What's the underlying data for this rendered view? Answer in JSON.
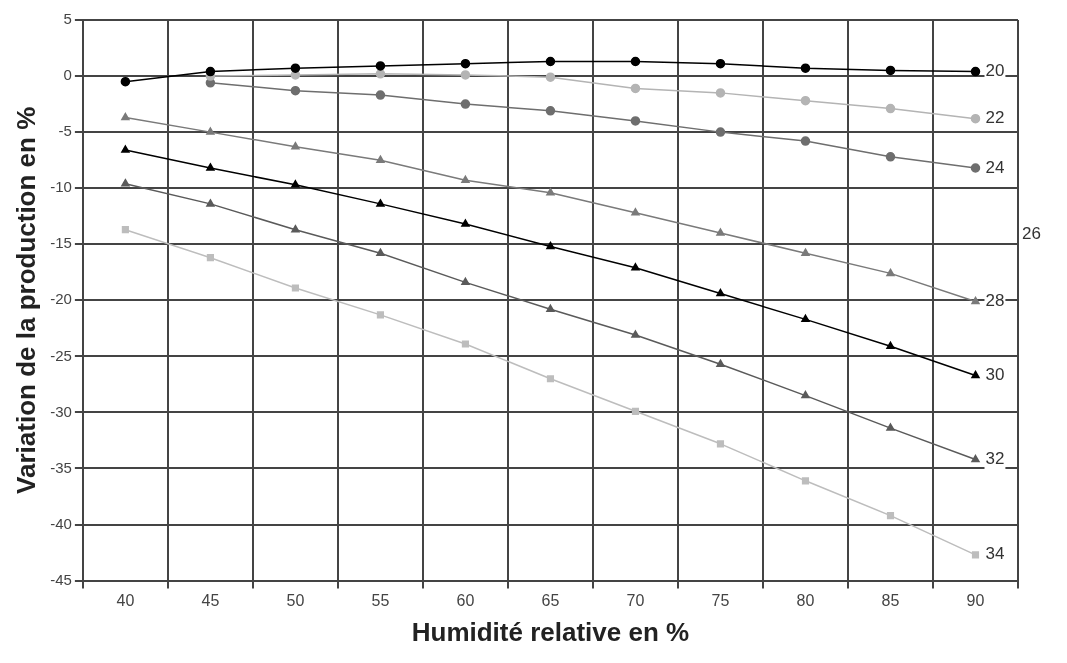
{
  "chart_data": {
    "type": "line",
    "xlabel": "Humidité relative en %",
    "ylabel": "Variation de la production en %",
    "categories": [
      "40",
      "45",
      "50",
      "55",
      "60",
      "65",
      "70",
      "75",
      "80",
      "85",
      "90"
    ],
    "ylim": [
      -45,
      5
    ],
    "yticks": [
      5,
      0,
      -5,
      -10,
      -15,
      -20,
      -25,
      -30,
      -35,
      -40,
      -45
    ],
    "grid": true,
    "legend": false,
    "series": [
      {
        "name": "20",
        "color": "#000000",
        "marker": "circle",
        "values": [
          -0.5,
          0.4,
          0.7,
          0.9,
          1.1,
          1.3,
          1.3,
          1.1,
          0.7,
          0.5,
          0.4
        ]
      },
      {
        "name": "22",
        "color": "#b4b4b4",
        "marker": "circle",
        "values": [
          null,
          0,
          0.1,
          0.2,
          0.1,
          -0.1,
          -1.1,
          -1.5,
          -2.2,
          -2.9,
          -3.8
        ]
      },
      {
        "name": "24",
        "color": "#6e6e6e",
        "marker": "circle",
        "values": [
          null,
          -0.6,
          -1.3,
          -1.7,
          -2.5,
          -3.1,
          -4.0,
          -5.0,
          -5.8,
          -7.2,
          -8.2
        ]
      },
      {
        "name": "28",
        "color": "#7a7a7a",
        "marker": "triangle",
        "values": [
          -3.7,
          -5.0,
          -6.3,
          -7.5,
          -9.3,
          -10.4,
          -12.2,
          -14.0,
          -15.8,
          -17.6,
          -20.1
        ]
      },
      {
        "name": "30",
        "color": "#000000",
        "marker": "triangle",
        "values": [
          -6.6,
          -8.2,
          -9.7,
          -11.4,
          -13.2,
          -15.2,
          -17.1,
          -19.4,
          -21.7,
          -24.1,
          -26.7
        ]
      },
      {
        "name": "32",
        "color": "#5a5a5a",
        "marker": "triangle",
        "values": [
          -9.6,
          -11.4,
          -13.7,
          -15.8,
          -18.4,
          -20.8,
          -23.1,
          -25.7,
          -28.5,
          -31.4,
          -34.2
        ]
      },
      {
        "name": "34",
        "color": "#bdbdbd",
        "marker": "square",
        "values": [
          -13.7,
          -16.2,
          -18.9,
          -21.3,
          -23.9,
          -27.0,
          -29.9,
          -32.8,
          -36.1,
          -39.2,
          -42.7
        ]
      }
    ],
    "annotations": [
      "26"
    ]
  }
}
